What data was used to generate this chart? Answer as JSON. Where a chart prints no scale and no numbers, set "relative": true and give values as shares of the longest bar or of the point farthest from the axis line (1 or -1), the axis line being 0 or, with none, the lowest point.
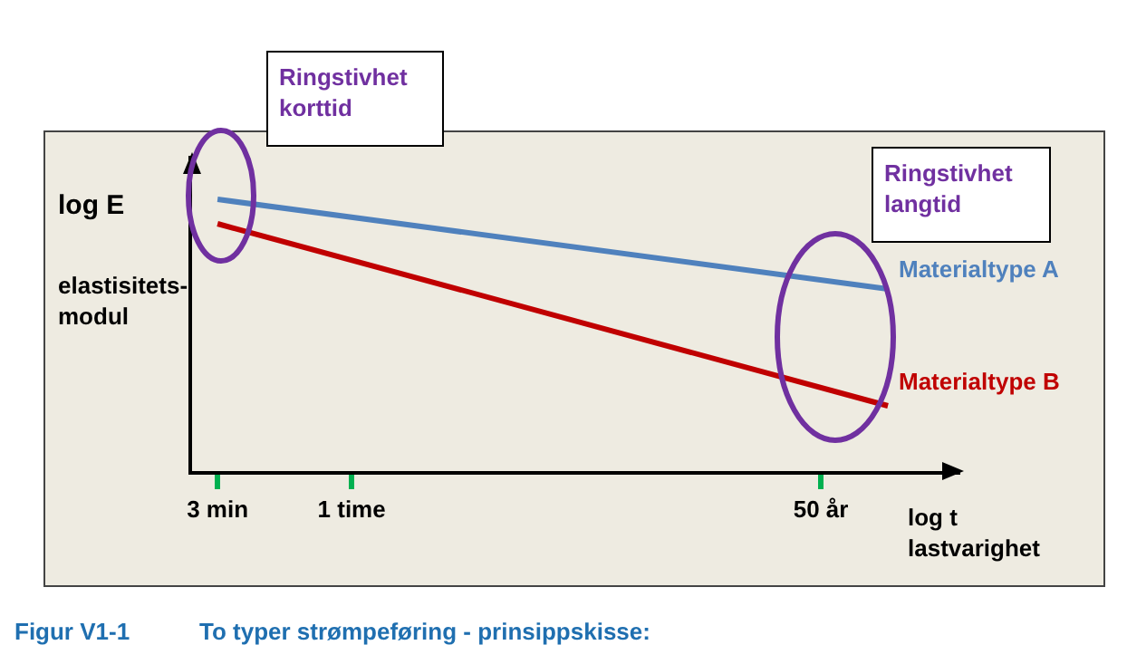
{
  "chart_data": {
    "type": "line",
    "relative": true,
    "xlabel": "log t\nlastvarighet",
    "ylabel": "log E",
    "categories": [
      "3 min",
      null,
      "1 time",
      null,
      null,
      null,
      null,
      null,
      null,
      "50 år",
      null
    ],
    "series": [
      {
        "name": "Materialtype A",
        "color": "#4f81bd",
        "values": [
          1,
          null,
          null,
          null,
          null,
          null,
          null,
          null,
          null,
          null,
          0.67
        ]
      },
      {
        "name": "Materialtype B",
        "color": "#c00000",
        "values": [
          0.91,
          null,
          null,
          null,
          null,
          null,
          null,
          null,
          null,
          null,
          0.24
        ]
      }
    ],
    "annotations": [
      "Ringstivhet\nkorttid",
      "Ringstivhet\nlangtid",
      "elastisitets-\nmodul",
      "Figur V1-1",
      "To typer strømpeføring - prinsippskisse:"
    ],
    "grid": false,
    "legend": false,
    "marker": "none",
    "line_style": "solid"
  }
}
